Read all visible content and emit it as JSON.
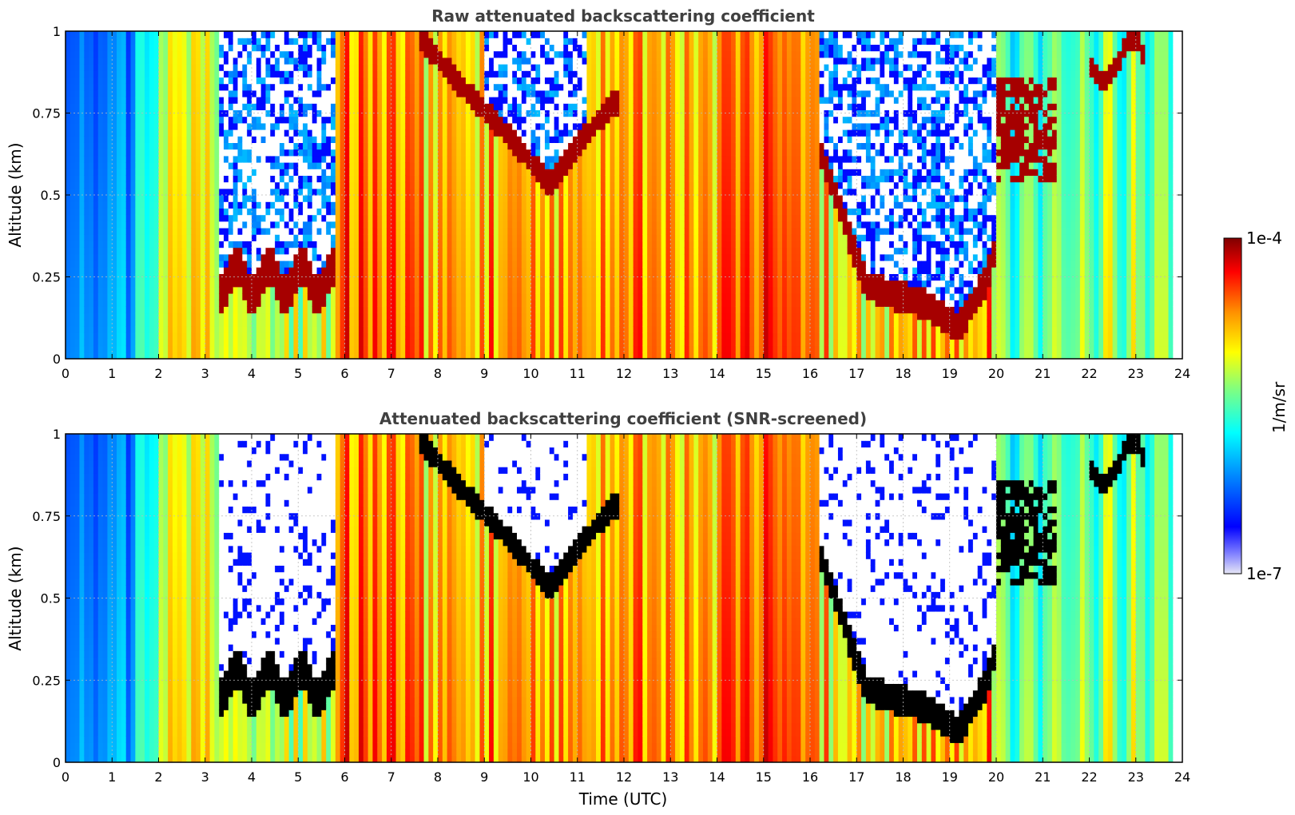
{
  "chart_data": [
    {
      "type": "heatmap",
      "title": "Raw attenuated backscattering coefficient",
      "xlabel": "",
      "ylabel": "Altitude (km)",
      "xlim": [
        0,
        24
      ],
      "ylim": [
        0,
        1
      ],
      "x_ticks": [
        "0",
        "1",
        "2",
        "3",
        "4",
        "5",
        "6",
        "7",
        "8",
        "9",
        "10",
        "11",
        "12",
        "13",
        "14",
        "15",
        "16",
        "17",
        "18",
        "19",
        "20",
        "21",
        "22",
        "23",
        "24"
      ],
      "y_ticks": [
        "0",
        "0.25",
        "0.5",
        "0.75",
        "1"
      ],
      "grid": true,
      "colormap": "jet",
      "color_scale": "log",
      "features": [
        {
          "kind": "background",
          "description_hours": [
            0,
            23.75
          ]
        },
        {
          "kind": "cloud_layer",
          "x": [
            3.3,
            5.8
          ],
          "y": [
            0.18,
            0.33
          ]
        },
        {
          "kind": "cloud_layer",
          "x": [
            7.6,
            11.9
          ],
          "y_path": [
            [
              7.6,
              0.95
            ],
            [
              8.5,
              0.8
            ],
            [
              9.5,
              0.65
            ],
            [
              10.4,
              0.5
            ],
            [
              11.2,
              0.65
            ],
            [
              11.8,
              0.75
            ]
          ]
        },
        {
          "kind": "cloud_layer",
          "x": [
            16.2,
            20.0
          ],
          "y_path": [
            [
              16.2,
              0.6
            ],
            [
              16.8,
              0.35
            ],
            [
              17.2,
              0.18
            ],
            [
              18.5,
              0.12
            ],
            [
              19.2,
              0.05
            ],
            [
              19.8,
              0.2
            ],
            [
              20.0,
              0.3
            ]
          ]
        },
        {
          "kind": "cloud_layer",
          "x": [
            20.0,
            21.3
          ],
          "y": [
            0.55,
            0.85
          ]
        },
        {
          "kind": "cloud_layer",
          "x": [
            22.0,
            23.2
          ],
          "y": [
            0.85,
            1.0
          ]
        },
        {
          "kind": "clear_gap",
          "x": [
            3.3,
            5.8
          ],
          "y": [
            0.33,
            1.0
          ]
        },
        {
          "kind": "clear_gap",
          "x": [
            9.0,
            11.0
          ],
          "y": [
            0.6,
            1.0
          ]
        },
        {
          "kind": "clear_gap",
          "x": [
            16.2,
            20.0
          ],
          "y": [
            0.25,
            1.0
          ]
        }
      ]
    },
    {
      "type": "heatmap",
      "title": "Attenuated backscattering coefficient (SNR-screened)",
      "xlabel": "Time (UTC)",
      "ylabel": "Altitude (km)",
      "xlim": [
        0,
        24
      ],
      "ylim": [
        0,
        1
      ],
      "x_ticks": [
        "0",
        "1",
        "2",
        "3",
        "4",
        "5",
        "6",
        "7",
        "8",
        "9",
        "10",
        "11",
        "12",
        "13",
        "14",
        "15",
        "16",
        "17",
        "18",
        "19",
        "20",
        "21",
        "22",
        "23",
        "24"
      ],
      "y_ticks": [
        "0",
        "0.25",
        "0.5",
        "0.75",
        "1"
      ],
      "grid": true,
      "colormap": "jet",
      "color_scale": "log",
      "screened_color": "#000000"
    }
  ],
  "colorbar": {
    "label": "1/m/sr",
    "max_label": "1e-4",
    "min_label": "1e-7",
    "vmin": 1e-07,
    "vmax": 0.0001,
    "colors": [
      "#e6e6f5",
      "#0000ff",
      "#00a0ff",
      "#00ffff",
      "#80ff80",
      "#ffff00",
      "#ff8000",
      "#ff0000",
      "#800000"
    ]
  }
}
